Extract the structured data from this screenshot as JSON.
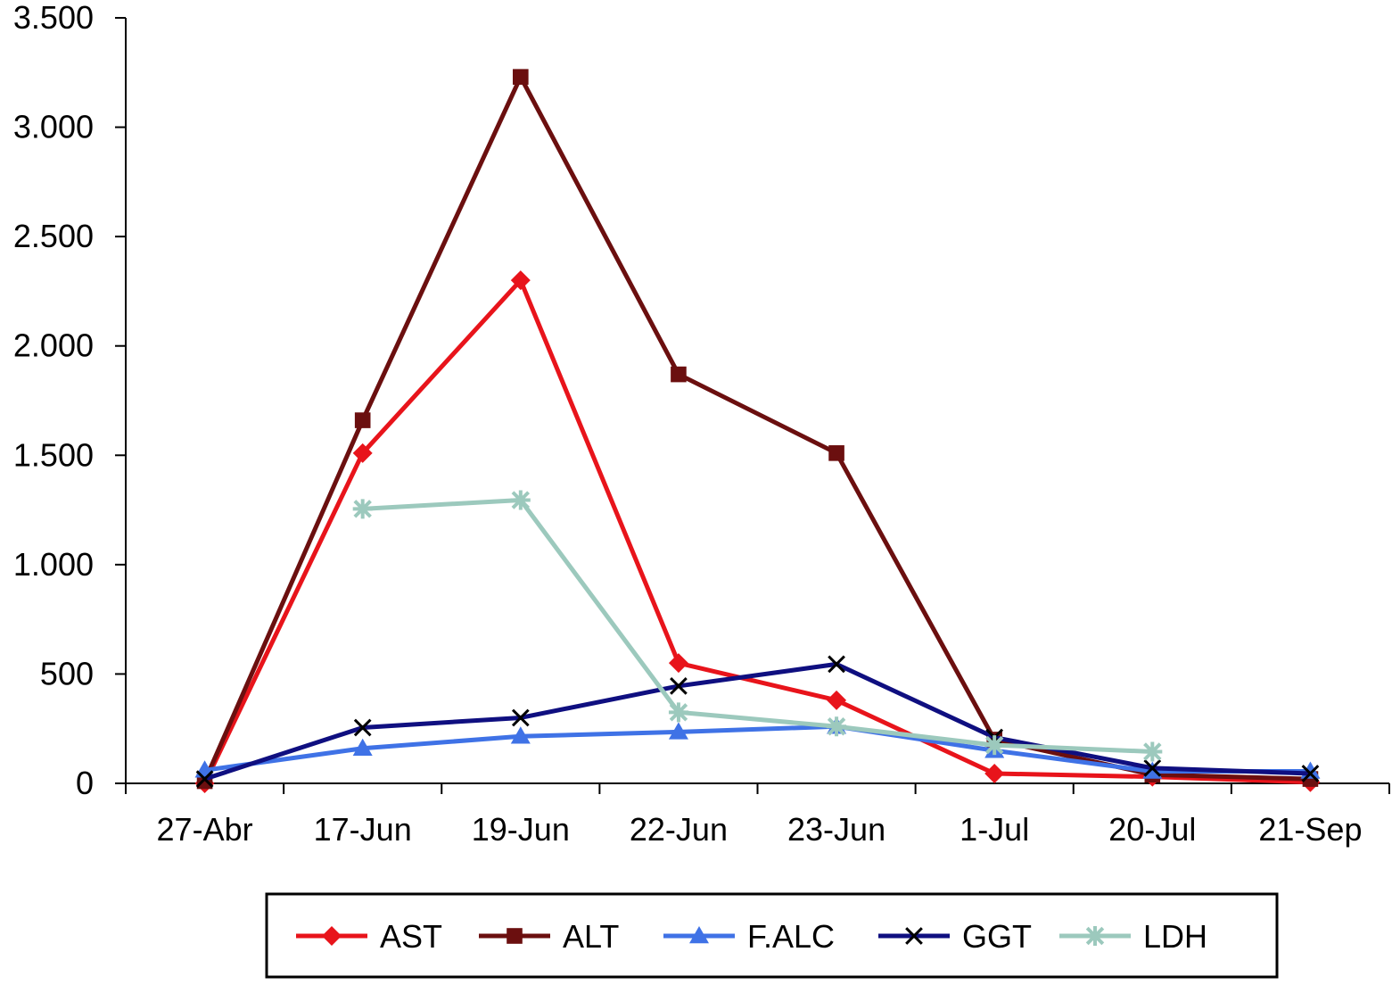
{
  "chart_data": {
    "type": "line",
    "title": "",
    "xlabel": "",
    "ylabel": "",
    "categories": [
      "27-Abr",
      "17-Jun",
      "19-Jun",
      "22-Jun",
      "23-Jun",
      "1-Jul",
      "20-Jul",
      "21-Sep"
    ],
    "ylim": [
      0,
      3500
    ],
    "yticks": [
      0,
      500,
      1000,
      1500,
      2000,
      2500,
      3000,
      3500
    ],
    "ytick_labels": [
      "0",
      "500",
      "1.000",
      "1.500",
      "2.000",
      "2.500",
      "3.000",
      "3.500"
    ],
    "grid": false,
    "legend_position": "bottom",
    "series": [
      {
        "name": "AST",
        "color": "#e8141b",
        "marker": "diamond",
        "values": [
          0,
          1510,
          2300,
          550,
          380,
          45,
          30,
          5
        ]
      },
      {
        "name": "ALT",
        "color": "#6b0f0f",
        "marker": "square",
        "values": [
          10,
          1660,
          3230,
          1870,
          1510,
          200,
          40,
          20
        ]
      },
      {
        "name": "F.ALC",
        "color": "#3f72e6",
        "marker": "triangle",
        "values": [
          60,
          160,
          215,
          235,
          260,
          150,
          55,
          55
        ]
      },
      {
        "name": "GGT",
        "color": "#0f0f80",
        "marker": "x",
        "values": [
          20,
          255,
          300,
          445,
          545,
          210,
          70,
          45
        ]
      },
      {
        "name": "LDH",
        "color": "#9cc9bd",
        "marker": "asterisk",
        "values": [
          null,
          1255,
          1295,
          325,
          260,
          175,
          145,
          null
        ]
      }
    ]
  }
}
